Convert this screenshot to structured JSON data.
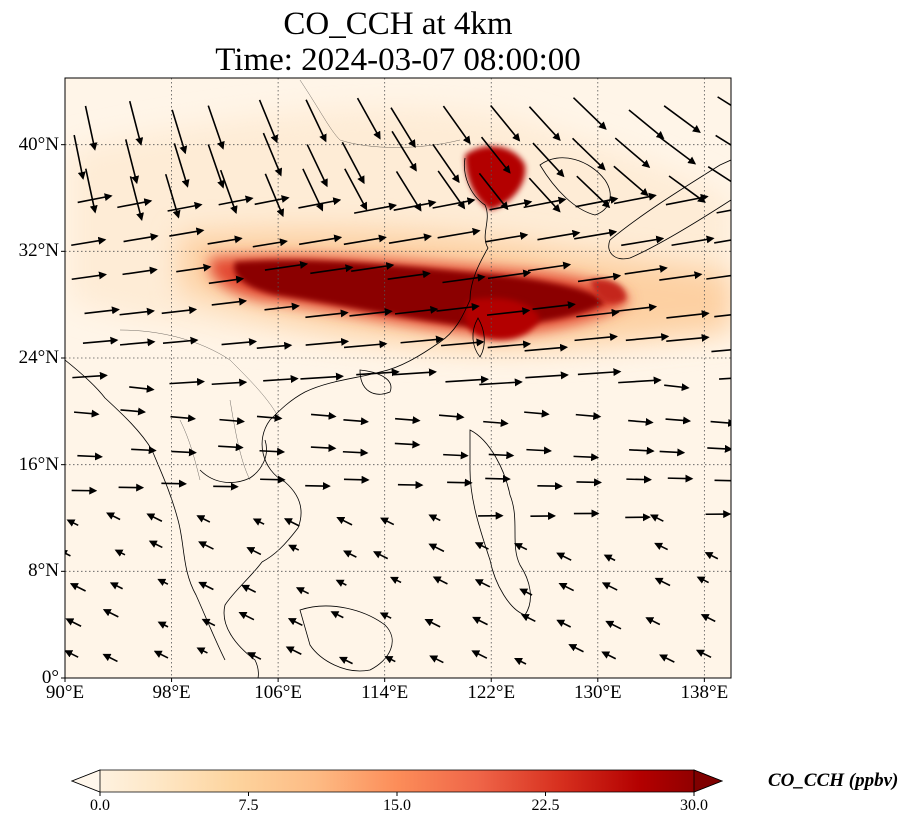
{
  "title": {
    "line1": "CO_CCH at 4km",
    "line2": "Time: 2024-03-07 08:00:00"
  },
  "map": {
    "type": "wind-vector-over-concentration-field",
    "lon_range": [
      90,
      140
    ],
    "lat_range": [
      0,
      45
    ],
    "lon_ticks": [
      {
        "value": 90,
        "label": "90°E"
      },
      {
        "value": 98,
        "label": "98°E"
      },
      {
        "value": 106,
        "label": "106°E"
      },
      {
        "value": 114,
        "label": "114°E"
      },
      {
        "value": 122,
        "label": "122°E"
      },
      {
        "value": 130,
        "label": "130°E"
      },
      {
        "value": 138,
        "label": "138°E"
      }
    ],
    "lat_ticks": [
      {
        "value": 0,
        "label": "0°"
      },
      {
        "value": 8,
        "label": "8°N"
      },
      {
        "value": 16,
        "label": "16°N"
      },
      {
        "value": 24,
        "label": "24°N"
      },
      {
        "value": 32,
        "label": "32°N"
      },
      {
        "value": 40,
        "label": "40°N"
      }
    ],
    "grid": true,
    "grid_style": "dotted"
  },
  "colorbar": {
    "label": "CO_CCH (ppbv)",
    "min": 0,
    "max": 30,
    "extend": "both",
    "colormap": "OrRd",
    "colors": [
      "#fff7ec",
      "#fee8c8",
      "#fdd49e",
      "#fdbb84",
      "#fc8d59",
      "#ef6548",
      "#d7301f",
      "#b30000",
      "#7f0000"
    ],
    "ticks": [
      {
        "value": 0,
        "label": "0.0"
      },
      {
        "value": 7.5,
        "label": "7.5"
      },
      {
        "value": 15,
        "label": "15.0"
      },
      {
        "value": 22.5,
        "label": "22.5"
      },
      {
        "value": 30,
        "label": "30.0"
      }
    ]
  }
}
